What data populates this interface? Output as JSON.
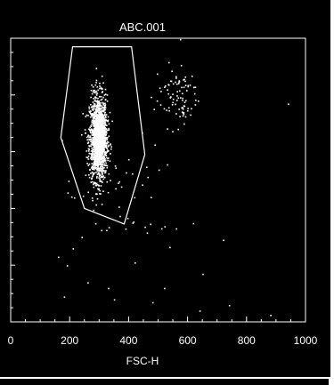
{
  "chart_data": {
    "type": "scatter",
    "title": "ABC.001",
    "xlabel": "FSC-H",
    "ylabel": "",
    "xlim": [
      0,
      1000
    ],
    "ylim": [
      0,
      1000
    ],
    "x_ticks": [
      "0",
      "200",
      "400",
      "600",
      "800",
      "1000"
    ],
    "x_tick_values": [
      0,
      200,
      400,
      600,
      800,
      1000
    ],
    "grid": false,
    "point_color": "#ffffff",
    "background_color": "#000000",
    "gate": {
      "name": "",
      "vertices": [
        [
          210,
          970
        ],
        [
          410,
          970
        ],
        [
          455,
          590
        ],
        [
          385,
          345
        ],
        [
          250,
          400
        ],
        [
          170,
          650
        ]
      ]
    },
    "clusters": [
      {
        "name": "",
        "center": [
          295,
          650
        ],
        "spread": [
          30,
          150
        ],
        "count": 1400
      },
      {
        "name": "",
        "center": [
          300,
          650
        ],
        "spread": [
          18,
          90
        ],
        "count": 800
      },
      {
        "name": "",
        "center": [
          560,
          800
        ],
        "spread": [
          75,
          110
        ],
        "count": 90
      },
      {
        "name": "",
        "center": [
          380,
          430
        ],
        "spread": [
          200,
          200
        ],
        "count": 45
      }
    ],
    "outliers": [
      [
        940,
        770
      ],
      [
        240,
        300
      ],
      [
        190,
        200
      ],
      [
        180,
        90
      ],
      [
        480,
        70
      ],
      [
        640,
        40
      ],
      [
        880,
        25
      ],
      [
        260,
        140
      ],
      [
        330,
        120
      ],
      [
        160,
        230
      ],
      [
        210,
        260
      ],
      [
        520,
        120
      ],
      [
        740,
        60
      ],
      [
        720,
        290
      ],
      [
        650,
        170
      ],
      [
        420,
        210
      ],
      [
        560,
        330
      ],
      [
        350,
        80
      ]
    ]
  }
}
